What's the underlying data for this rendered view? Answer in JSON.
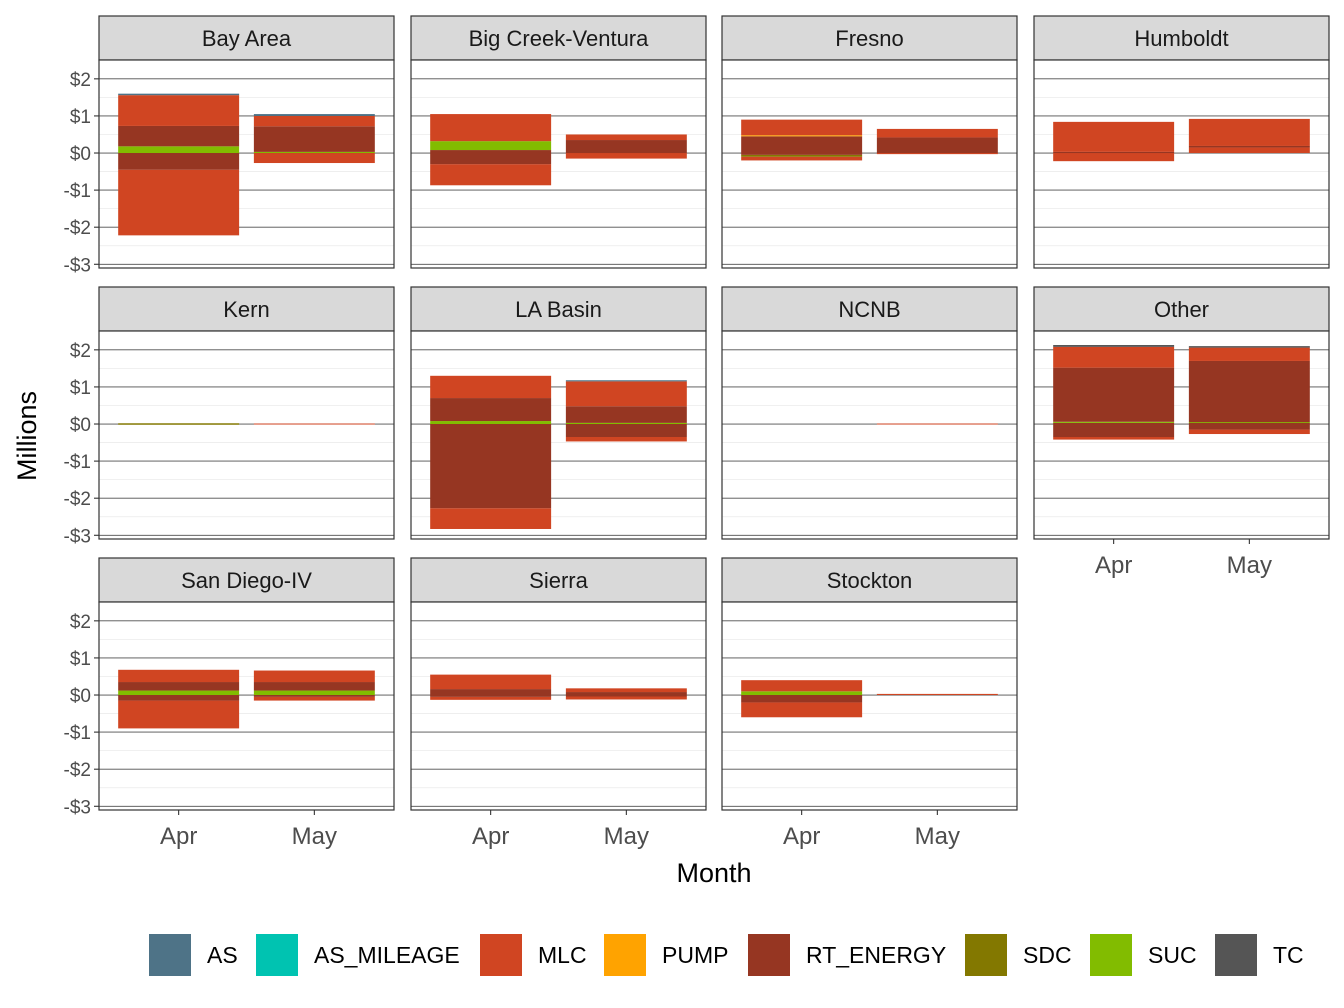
{
  "chart_data": {
    "type": "bar",
    "layout": "faceted-stacked",
    "ylabel": "Millions",
    "xlabel": "Month",
    "categories": [
      "Apr",
      "May"
    ],
    "ylim": [
      -3.1,
      2.4
    ],
    "y_ticks": [
      2,
      1,
      0,
      -1,
      -2,
      -3
    ],
    "y_tick_labels": [
      "$2",
      "$1",
      "$0",
      "-$1",
      "-$2",
      "-$3"
    ],
    "legend_position": "bottom",
    "series": [
      {
        "name": "AS",
        "color": "#4E7387"
      },
      {
        "name": "AS_MILEAGE",
        "color": "#00C3B1"
      },
      {
        "name": "MLC",
        "color": "#D04522"
      },
      {
        "name": "PUMP",
        "color": "#FFA300"
      },
      {
        "name": "RT_ENERGY",
        "color": "#963622"
      },
      {
        "name": "SDC",
        "color": "#837800"
      },
      {
        "name": "SUC",
        "color": "#82BC00"
      },
      {
        "name": "TC",
        "color": "#555555"
      }
    ],
    "facets": [
      {
        "name": "Bay Area",
        "bars": [
          [
            {
              "s": "MLC",
              "y0": -2.22,
              "y1": -0.45
            },
            {
              "s": "RT_ENERGY",
              "y0": -0.45,
              "y1": 0.0
            },
            {
              "s": "SUC",
              "y0": 0.0,
              "y1": 0.18
            },
            {
              "s": "RT_ENERGY",
              "y0": 0.18,
              "y1": 0.73
            },
            {
              "s": "MLC",
              "y0": 0.73,
              "y1": 1.56
            },
            {
              "s": "AS",
              "y0": 1.56,
              "y1": 1.6
            }
          ],
          [
            {
              "s": "MLC",
              "y0": -0.27,
              "y1": 0.0
            },
            {
              "s": "SUC",
              "y0": 0.0,
              "y1": 0.03
            },
            {
              "s": "RT_ENERGY",
              "y0": 0.03,
              "y1": 0.72
            },
            {
              "s": "MLC",
              "y0": 0.72,
              "y1": 1.0
            },
            {
              "s": "AS",
              "y0": 1.0,
              "y1": 1.05
            }
          ]
        ]
      },
      {
        "name": "Big Creek-Ventura",
        "bars": [
          [
            {
              "s": "MLC",
              "y0": -0.87,
              "y1": -0.3
            },
            {
              "s": "RT_ENERGY",
              "y0": -0.3,
              "y1": 0.08
            },
            {
              "s": "SUC",
              "y0": 0.08,
              "y1": 0.32
            },
            {
              "s": "MLC",
              "y0": 0.32,
              "y1": 1.05
            }
          ],
          [
            {
              "s": "MLC",
              "y0": -0.15,
              "y1": 0.0
            },
            {
              "s": "RT_ENERGY",
              "y0": 0.0,
              "y1": 0.35
            },
            {
              "s": "MLC",
              "y0": 0.35,
              "y1": 0.5
            }
          ]
        ]
      },
      {
        "name": "Fresno",
        "bars": [
          [
            {
              "s": "MLC",
              "y0": -0.2,
              "y1": -0.1
            },
            {
              "s": "SDC",
              "y0": -0.1,
              "y1": -0.05
            },
            {
              "s": "RT_ENERGY",
              "y0": -0.05,
              "y1": 0.45
            },
            {
              "s": "PUMP",
              "y0": 0.45,
              "y1": 0.48
            },
            {
              "s": "MLC",
              "y0": 0.48,
              "y1": 0.9
            }
          ],
          [
            {
              "s": "MLC",
              "y0": -0.03,
              "y1": 0.0
            },
            {
              "s": "RT_ENERGY",
              "y0": 0.0,
              "y1": 0.42
            },
            {
              "s": "MLC",
              "y0": 0.42,
              "y1": 0.65
            }
          ]
        ]
      },
      {
        "name": "Humboldt",
        "bars": [
          [
            {
              "s": "MLC",
              "y0": -0.22,
              "y1": 0.0
            },
            {
              "s": "RT_ENERGY",
              "y0": 0.0,
              "y1": 0.03
            },
            {
              "s": "MLC",
              "y0": 0.03,
              "y1": 0.84
            }
          ],
          [
            {
              "s": "MLC",
              "y0": 0.0,
              "y1": 0.15
            },
            {
              "s": "RT_ENERGY",
              "y0": 0.15,
              "y1": 0.19
            },
            {
              "s": "MLC",
              "y0": 0.19,
              "y1": 0.92
            }
          ]
        ]
      },
      {
        "name": "Kern",
        "bars": [
          [
            {
              "s": "SDC",
              "y0": -0.02,
              "y1": 0.02
            }
          ],
          [
            {
              "s": "MLC",
              "y0": -0.01,
              "y1": 0.01
            }
          ]
        ]
      },
      {
        "name": "LA Basin",
        "bars": [
          [
            {
              "s": "MLC",
              "y0": -2.83,
              "y1": -2.27
            },
            {
              "s": "RT_ENERGY",
              "y0": -2.27,
              "y1": 0.0
            },
            {
              "s": "SUC",
              "y0": 0.0,
              "y1": 0.08
            },
            {
              "s": "RT_ENERGY",
              "y0": 0.08,
              "y1": 0.7
            },
            {
              "s": "MLC",
              "y0": 0.7,
              "y1": 1.3
            }
          ],
          [
            {
              "s": "MLC",
              "y0": -0.47,
              "y1": -0.35
            },
            {
              "s": "RT_ENERGY",
              "y0": -0.35,
              "y1": 0.0
            },
            {
              "s": "SUC",
              "y0": 0.0,
              "y1": 0.03
            },
            {
              "s": "RT_ENERGY",
              "y0": 0.03,
              "y1": 0.48
            },
            {
              "s": "MLC",
              "y0": 0.48,
              "y1": 1.15
            },
            {
              "s": "AS",
              "y0": 1.15,
              "y1": 1.18
            }
          ]
        ]
      },
      {
        "name": "NCNB",
        "bars": [
          [],
          [
            {
              "s": "MLC",
              "y0": -0.01,
              "y1": 0.01
            }
          ]
        ]
      },
      {
        "name": "Other",
        "bars": [
          [
            {
              "s": "MLC",
              "y0": -0.42,
              "y1": -0.35
            },
            {
              "s": "RT_ENERGY",
              "y0": -0.35,
              "y1": 0.03
            },
            {
              "s": "SUC",
              "y0": 0.03,
              "y1": 0.06
            },
            {
              "s": "RT_ENERGY",
              "y0": 0.06,
              "y1": 1.52
            },
            {
              "s": "MLC",
              "y0": 1.52,
              "y1": 2.08
            },
            {
              "s": "TC",
              "y0": 2.08,
              "y1": 2.13
            }
          ],
          [
            {
              "s": "MLC",
              "y0": -0.27,
              "y1": -0.15
            },
            {
              "s": "RT_ENERGY",
              "y0": -0.15,
              "y1": 0.03
            },
            {
              "s": "SUC",
              "y0": 0.03,
              "y1": 0.05
            },
            {
              "s": "RT_ENERGY",
              "y0": 0.05,
              "y1": 1.7
            },
            {
              "s": "MLC",
              "y0": 1.7,
              "y1": 2.06
            },
            {
              "s": "TC",
              "y0": 2.06,
              "y1": 2.1
            }
          ]
        ]
      },
      {
        "name": "San Diego-IV",
        "bars": [
          [
            {
              "s": "MLC",
              "y0": -0.9,
              "y1": -0.15
            },
            {
              "s": "RT_ENERGY",
              "y0": -0.15,
              "y1": 0.0
            },
            {
              "s": "SUC",
              "y0": 0.0,
              "y1": 0.12
            },
            {
              "s": "RT_ENERGY",
              "y0": 0.12,
              "y1": 0.35
            },
            {
              "s": "MLC",
              "y0": 0.35,
              "y1": 0.68
            }
          ],
          [
            {
              "s": "MLC",
              "y0": -0.15,
              "y1": -0.05
            },
            {
              "s": "RT_ENERGY",
              "y0": -0.05,
              "y1": 0.0
            },
            {
              "s": "SUC",
              "y0": 0.0,
              "y1": 0.12
            },
            {
              "s": "RT_ENERGY",
              "y0": 0.12,
              "y1": 0.35
            },
            {
              "s": "MLC",
              "y0": 0.35,
              "y1": 0.66
            }
          ]
        ]
      },
      {
        "name": "Sierra",
        "bars": [
          [
            {
              "s": "MLC",
              "y0": -0.13,
              "y1": -0.05
            },
            {
              "s": "RT_ENERGY",
              "y0": -0.05,
              "y1": 0.16
            },
            {
              "s": "MLC",
              "y0": 0.16,
              "y1": 0.55
            }
          ],
          [
            {
              "s": "MLC",
              "y0": -0.12,
              "y1": -0.04
            },
            {
              "s": "RT_ENERGY",
              "y0": -0.04,
              "y1": 0.08
            },
            {
              "s": "MLC",
              "y0": 0.08,
              "y1": 0.18
            }
          ]
        ]
      },
      {
        "name": "Stockton",
        "bars": [
          [
            {
              "s": "MLC",
              "y0": -0.6,
              "y1": -0.2
            },
            {
              "s": "RT_ENERGY",
              "y0": -0.2,
              "y1": 0.0
            },
            {
              "s": "SUC",
              "y0": 0.0,
              "y1": 0.1
            },
            {
              "s": "MLC",
              "y0": 0.1,
              "y1": 0.4
            }
          ],
          [
            {
              "s": "MLC",
              "y0": 0.0,
              "y1": 0.03
            }
          ]
        ]
      }
    ]
  }
}
